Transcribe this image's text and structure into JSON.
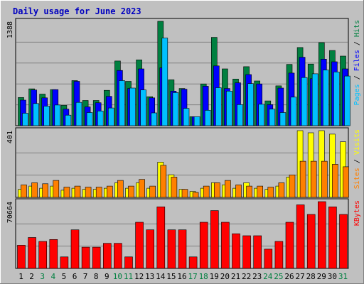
{
  "colors": {
    "background": "#c0c0c0",
    "panel": "#c0c0c0",
    "title": "#0000c0",
    "hits": "#008040",
    "files": "#0000ff",
    "pages": "#00c0ff",
    "visits": "#ffff00",
    "sites": "#ff8000",
    "kbytes": "#ff0000",
    "grid": "#808080",
    "weekend": "#008040"
  },
  "chart_data": {
    "type": "bar",
    "title": "Daily usage for June 2023",
    "categories": [
      "1",
      "2",
      "3",
      "4",
      "5",
      "6",
      "7",
      "8",
      "9",
      "10",
      "11",
      "12",
      "13",
      "14",
      "15",
      "16",
      "17",
      "18",
      "19",
      "20",
      "21",
      "22",
      "23",
      "24",
      "25",
      "26",
      "27",
      "28",
      "29",
      "30",
      "31"
    ],
    "weekend_days": [
      "3",
      "4",
      "10",
      "11",
      "17",
      "18",
      "24",
      "25",
      "31"
    ],
    "panels": [
      {
        "name": "hits-files-pages",
        "max_label": "1388",
        "ylim": [
          0,
          1388
        ],
        "legend": [
          "Pages",
          "Files",
          "Hits"
        ],
        "series": [
          {
            "name": "Hits",
            "values": [
              375,
              490,
              420,
              480,
              270,
              600,
              335,
              335,
              470,
              860,
              590,
              875,
              385,
              1388,
              610,
              495,
              120,
              555,
              1175,
              755,
              620,
              785,
              595,
              330,
              530,
              815,
              1040,
              820,
              1105,
              1000,
              925
            ]
          },
          {
            "name": "Files",
            "values": [
              340,
              475,
              370,
              480,
              220,
              590,
              250,
              305,
              390,
              735,
              495,
              755,
              370,
              770,
              460,
              485,
              120,
              525,
              795,
              495,
              570,
              680,
              555,
              280,
              500,
              700,
              910,
              625,
              885,
              850,
              755
            ]
          },
          {
            "name": "Pages",
            "values": [
              165,
              295,
              260,
              275,
              140,
              310,
              175,
              195,
              235,
              600,
              500,
              475,
              170,
              1165,
              440,
              230,
              120,
              205,
              505,
              460,
              280,
              560,
              285,
              220,
              175,
              380,
              640,
              690,
              740,
              715,
              660
            ]
          }
        ]
      },
      {
        "name": "visits-sites",
        "max_label": "401",
        "ylim": [
          0,
          401
        ],
        "legend": [
          "Sites",
          "Visits"
        ],
        "series": [
          {
            "name": "Visits",
            "values": [
              48,
              68,
              55,
              68,
              43,
              55,
              48,
              48,
              55,
              88,
              55,
              88,
              55,
              212,
              136,
              48,
              36,
              55,
              88,
              75,
              55,
              88,
              55,
              48,
              68,
              122,
              401,
              388,
              401,
              380,
              334
            ]
          },
          {
            "name": "Sites",
            "values": [
              75,
              88,
              82,
              102,
              62,
              68,
              62,
              62,
              68,
              102,
              68,
              108,
              68,
              193,
              122,
              48,
              30,
              68,
              88,
              102,
              75,
              68,
              68,
              62,
              88,
              135,
              217,
              217,
              217,
              199,
              184
            ]
          }
        ]
      },
      {
        "name": "kbytes",
        "max_label": "70664",
        "ylim": [
          0,
          70664
        ],
        "legend": [
          "KBytes"
        ],
        "series": [
          {
            "name": "KBytes",
            "values": [
              24500,
              32700,
              28600,
              30600,
              12200,
              40800,
              22500,
              22500,
              26500,
              26500,
              12200,
              48900,
              40800,
              65200,
              40800,
              40800,
              12200,
              48900,
              61200,
              48900,
              36700,
              34600,
              34600,
              20400,
              28600,
              48900,
              67300,
              57100,
              70664,
              65200,
              57100
            ]
          }
        ]
      }
    ]
  }
}
